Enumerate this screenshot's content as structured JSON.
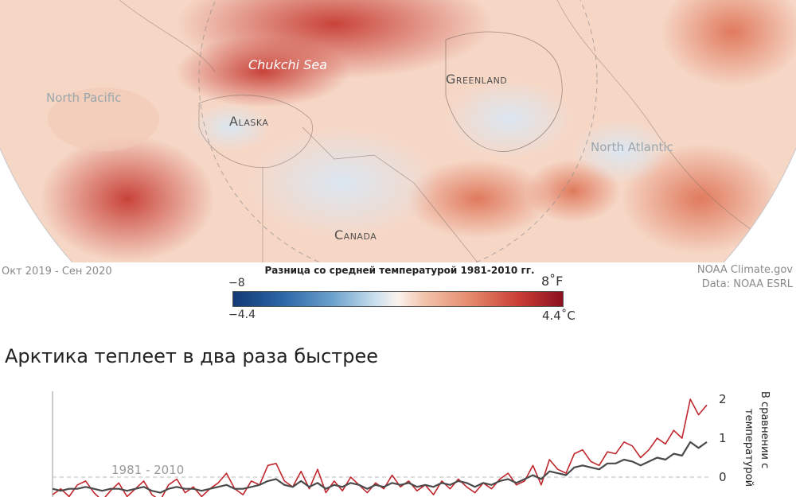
{
  "map": {
    "labels": {
      "chukchi_sea": "Chukchi Sea",
      "north_pacific": "North Pacific",
      "greenland": "Greenland",
      "alaska": "Alaska",
      "north_atlantic": "North Atlantic",
      "canada": "Canada"
    },
    "period": "Окт 2019 - Сен 2020",
    "credit_line1": "NOAA Climate.gov",
    "credit_line2": "Data: NOAA ESRL"
  },
  "legend": {
    "title": "Разница со средней температурой 1981-2010 гг.",
    "f_min": "−8",
    "f_max": "8˚F",
    "c_min": "−4.4",
    "c_max": "4.4˚C",
    "colors": [
      "#123a75",
      "#2c66a6",
      "#6aa1cd",
      "#c9dfee",
      "#fbf3ee",
      "#f2c3aa",
      "#e48a6b",
      "#c83b33",
      "#8c1020"
    ]
  },
  "chart_data": {
    "type": "line",
    "title": "Арктика теплеет в два раза быстрее",
    "baseline_label": "1981 - 2010",
    "ylabel_line1": "В сравнении с",
    "ylabel_line2": "температурой",
    "yticks": [
      "2",
      "1",
      "0"
    ],
    "ylim": [
      -0.5,
      2.2
    ],
    "x_points": 80,
    "series": [
      {
        "color": "#c0272d",
        "values": [
          -0.45,
          -0.3,
          -0.5,
          -0.2,
          -0.1,
          -0.4,
          -0.6,
          -0.35,
          -0.15,
          -0.5,
          -0.3,
          -0.1,
          -0.45,
          -0.6,
          -0.2,
          -0.05,
          -0.4,
          -0.25,
          -0.5,
          -0.3,
          -0.15,
          0.1,
          -0.3,
          -0.45,
          -0.1,
          -0.2,
          0.3,
          0.35,
          -0.1,
          -0.25,
          0.15,
          -0.3,
          0.2,
          -0.4,
          -0.1,
          -0.35,
          0.0,
          -0.2,
          -0.4,
          -0.15,
          -0.3,
          0.05,
          -0.25,
          -0.1,
          -0.35,
          -0.2,
          -0.45,
          -0.1,
          -0.3,
          -0.05,
          -0.25,
          -0.4,
          -0.15,
          -0.3,
          -0.05,
          0.1,
          -0.2,
          -0.1,
          0.3,
          -0.2,
          0.45,
          0.2,
          0.1,
          0.6,
          0.7,
          0.4,
          0.3,
          0.65,
          0.6,
          0.9,
          0.8,
          0.5,
          0.7,
          1.0,
          0.85,
          1.2,
          1.0,
          2.0,
          1.6,
          1.85
        ]
      },
      {
        "color": "#4a4a4a",
        "values": [
          -0.3,
          -0.35,
          -0.3,
          -0.3,
          -0.25,
          -0.3,
          -0.35,
          -0.3,
          -0.3,
          -0.35,
          -0.3,
          -0.25,
          -0.35,
          -0.4,
          -0.3,
          -0.25,
          -0.3,
          -0.3,
          -0.35,
          -0.3,
          -0.25,
          -0.2,
          -0.3,
          -0.3,
          -0.25,
          -0.2,
          -0.1,
          -0.05,
          -0.2,
          -0.25,
          -0.1,
          -0.25,
          -0.15,
          -0.3,
          -0.2,
          -0.25,
          -0.15,
          -0.2,
          -0.3,
          -0.2,
          -0.25,
          -0.15,
          -0.2,
          -0.15,
          -0.25,
          -0.2,
          -0.25,
          -0.15,
          -0.2,
          -0.1,
          -0.15,
          -0.25,
          -0.15,
          -0.2,
          -0.1,
          -0.05,
          -0.15,
          -0.05,
          0.05,
          -0.05,
          0.15,
          0.1,
          0.05,
          0.25,
          0.3,
          0.25,
          0.2,
          0.35,
          0.35,
          0.45,
          0.4,
          0.3,
          0.4,
          0.5,
          0.45,
          0.6,
          0.55,
          0.9,
          0.75,
          0.9
        ]
      }
    ]
  }
}
